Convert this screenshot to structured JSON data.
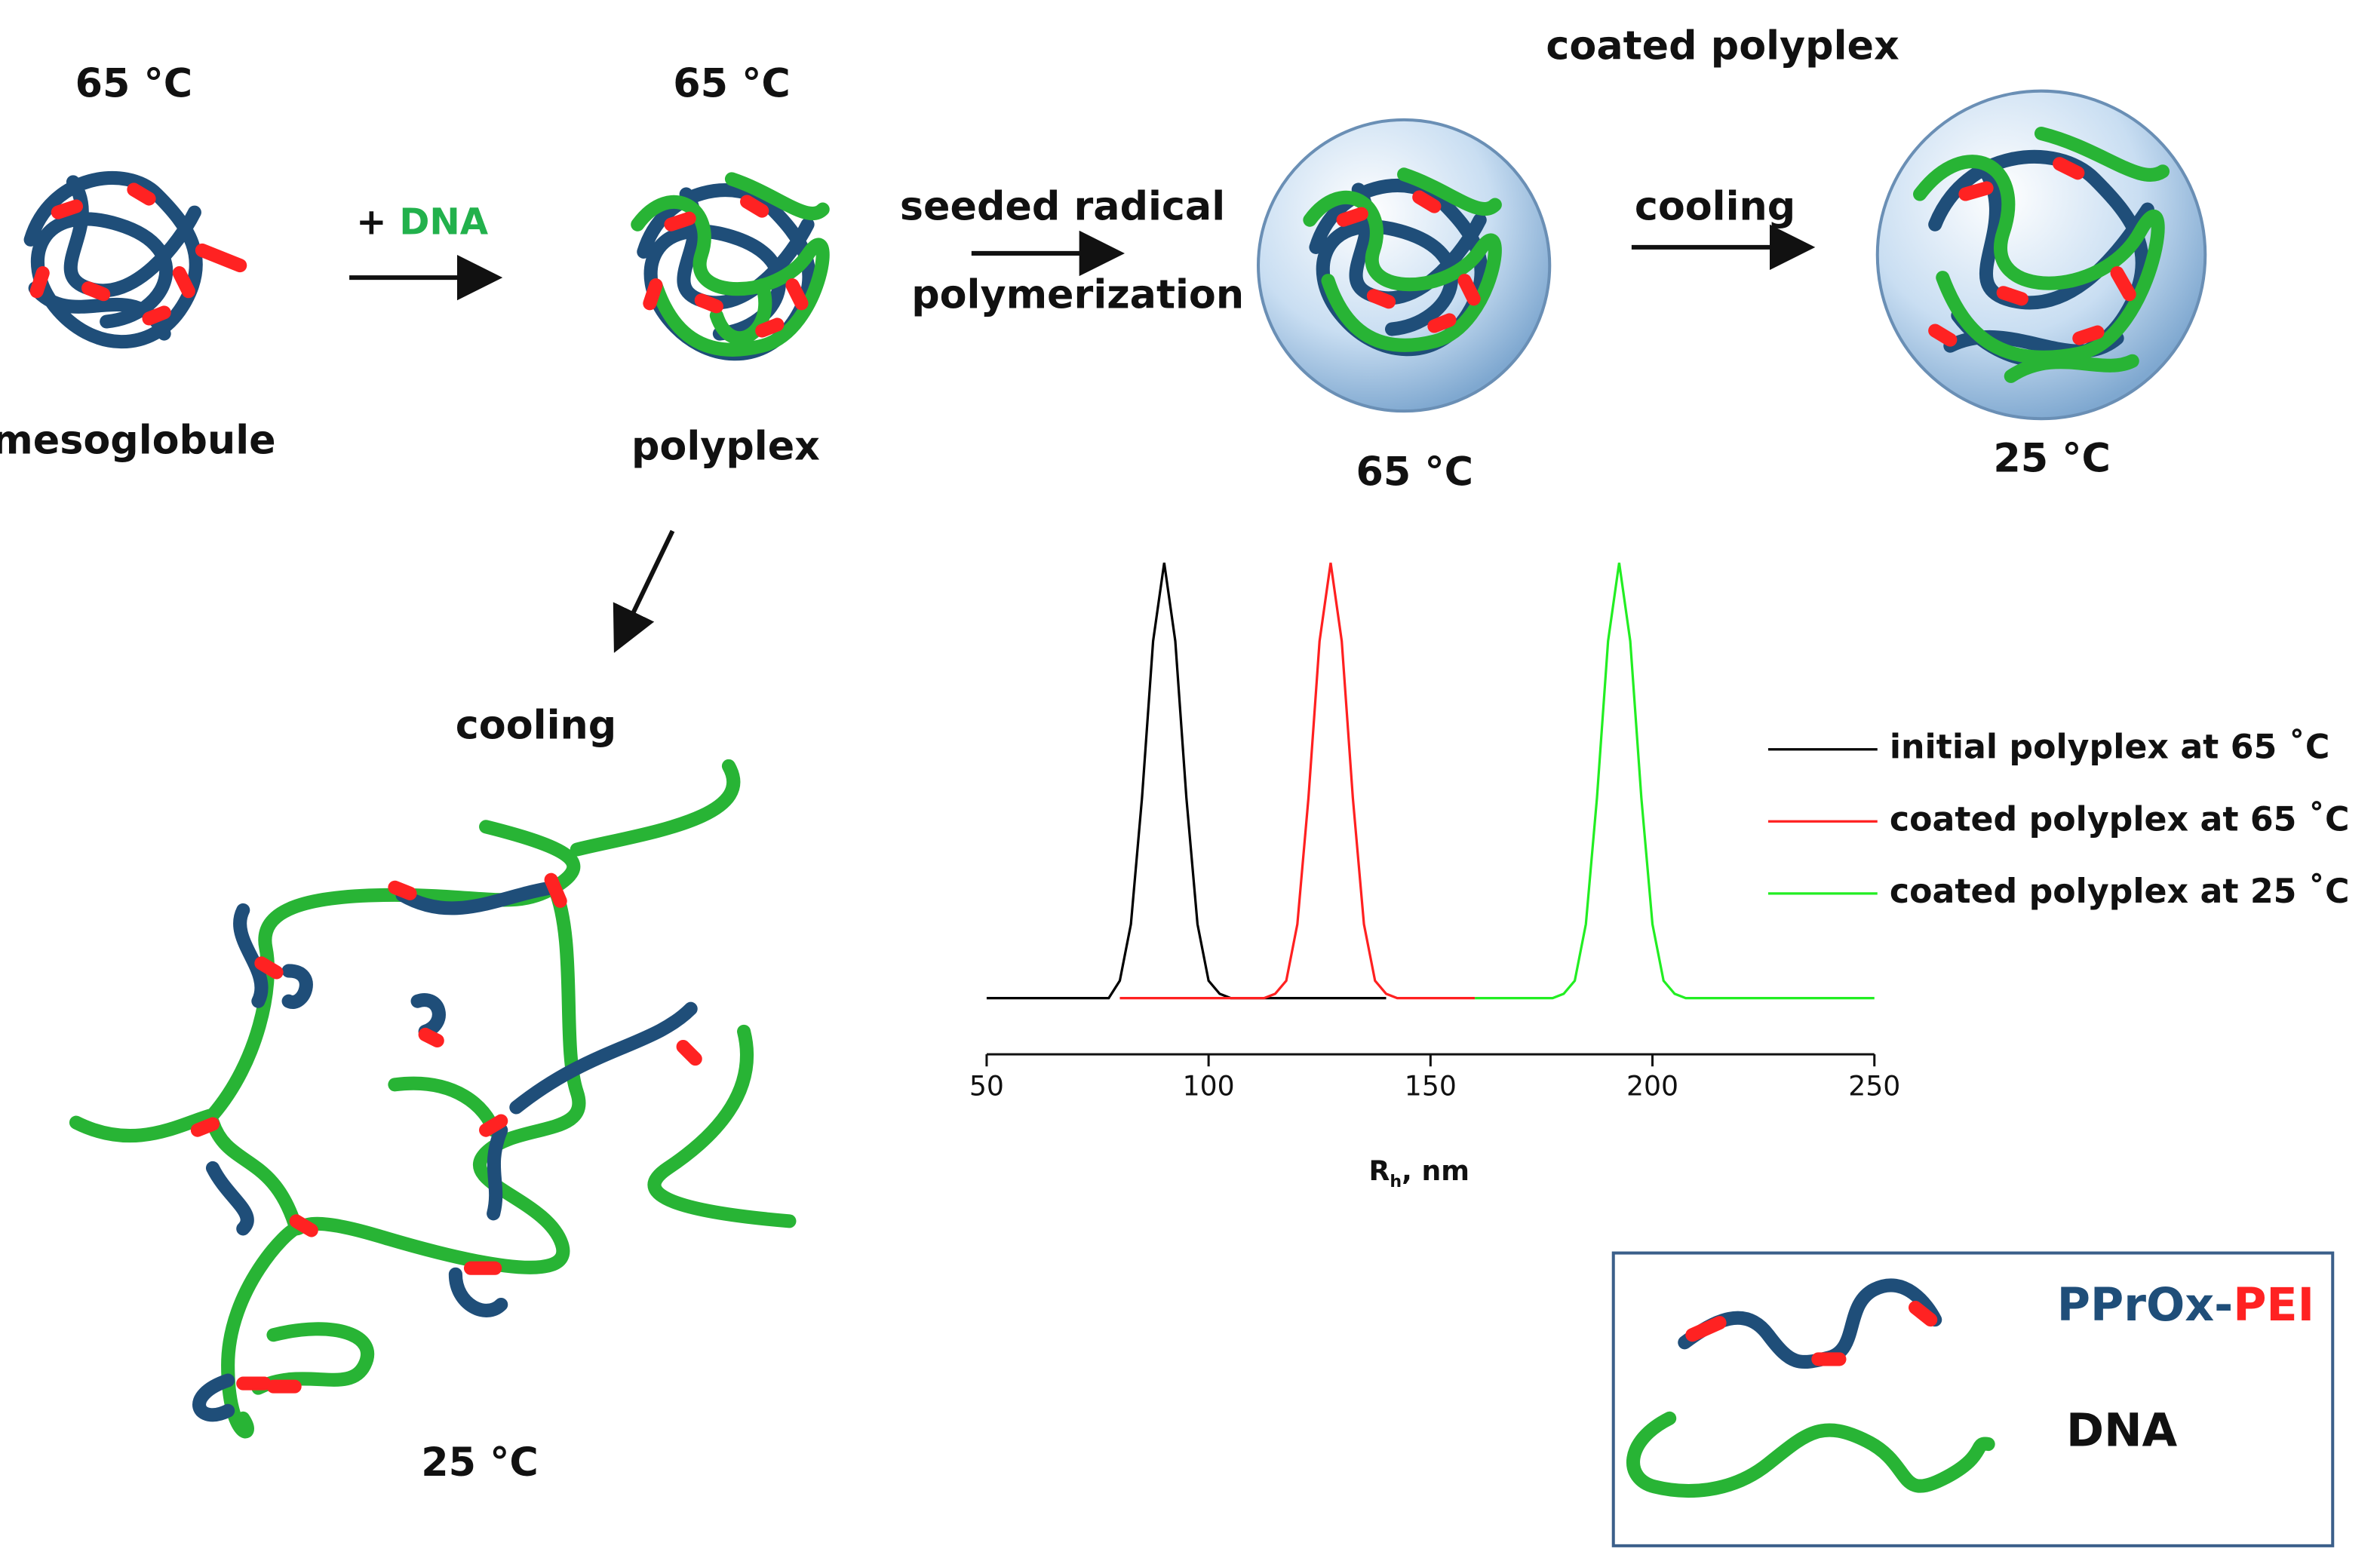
{
  "labels": {
    "mesoglobule_temp": "65 °C",
    "mesoglobule": "mesoglobule",
    "plus": "+",
    "dna": "DNA",
    "polyplex_temp": "65 °C",
    "polyplex": "polyplex",
    "seeded_1": "seeded radical",
    "seeded_2": "polymerization",
    "coated_title": "coated polyplex",
    "coated_temp": "65 °C",
    "cooling_top": "cooling",
    "cooled_temp": "25 °C",
    "cooling_bottom": "cooling",
    "network_temp": "25 °C"
  },
  "key": {
    "pprox": "PPrOx-",
    "pei": "PEI",
    "dna": "DNA"
  },
  "chart_data": {
    "type": "line",
    "x_label_symbol": "R",
    "x_label_subscript": "h",
    "x_label_unit": ", nm",
    "xlim": [
      50,
      250
    ],
    "xticks": [
      50,
      100,
      150,
      200,
      250
    ],
    "ylim": [
      0,
      1
    ],
    "x": [
      50,
      52.5,
      55,
      57.5,
      60,
      62.5,
      65,
      67.5,
      70,
      72.5,
      75,
      77.5,
      80,
      82.5,
      85,
      87.5,
      90,
      92.5,
      95,
      97.5,
      100,
      102.5,
      105,
      107.5,
      110,
      112.5,
      115,
      117.5,
      120,
      122.5,
      125,
      127.5,
      130,
      132.5,
      135,
      137.5,
      140,
      142.5,
      145,
      147.5,
      150,
      152.5,
      155,
      157.5,
      160,
      162.5,
      165,
      167.5,
      170,
      172.5,
      175,
      177.5,
      180,
      182.5,
      185,
      187.5,
      190,
      192.5,
      195,
      197.5,
      200,
      202.5,
      205,
      207.5,
      210,
      212.5,
      215,
      217.5,
      220,
      222.5,
      225,
      227.5,
      230,
      232.5,
      235,
      237.5,
      240,
      242.5,
      245,
      247.5,
      250
    ],
    "series": [
      {
        "name": "initial polyplex at 65 ˚C",
        "color": "#000000",
        "values": [
          0,
          0,
          0,
          0,
          0,
          0,
          0,
          0,
          0,
          0,
          0,
          0,
          0.04,
          0.17,
          0.46,
          0.82,
          1,
          0.82,
          0.46,
          0.17,
          0.04,
          0.01,
          0,
          0,
          0,
          0,
          0,
          0,
          0,
          0,
          0,
          0,
          0,
          0,
          0,
          0,
          0,
          null,
          null,
          null,
          null,
          null,
          null,
          null,
          null,
          null,
          null,
          null,
          null,
          null,
          null,
          null,
          null,
          null,
          null,
          null,
          null,
          null,
          null,
          null,
          null,
          null,
          null,
          null,
          null,
          null,
          null,
          null,
          null,
          null,
          null,
          null,
          null,
          null,
          null,
          null,
          null,
          null,
          null,
          null,
          null
        ]
      },
      {
        "name": "coated polyplex at 65 ˚C",
        "color": "#ff2020",
        "values": [
          null,
          null,
          null,
          null,
          null,
          null,
          null,
          null,
          null,
          null,
          null,
          null,
          0,
          0,
          0,
          0,
          0,
          0,
          0,
          0,
          0,
          0,
          0,
          0,
          0,
          0,
          0.01,
          0.04,
          0.17,
          0.46,
          0.82,
          1,
          0.82,
          0.46,
          0.17,
          0.04,
          0.01,
          0,
          0,
          0,
          0,
          0,
          0,
          0,
          0,
          null,
          null,
          null,
          null,
          null,
          null,
          null,
          null,
          null,
          null,
          null,
          null,
          null,
          null,
          null,
          null,
          null,
          null,
          null,
          null,
          null,
          null,
          null,
          null,
          null,
          null,
          null,
          null,
          null,
          null,
          null,
          null,
          null,
          null,
          null,
          null
        ]
      },
      {
        "name": "coated polyplex at 25 ˚C",
        "color": "#22ee22",
        "values": [
          null,
          null,
          null,
          null,
          null,
          null,
          null,
          null,
          null,
          null,
          null,
          null,
          null,
          null,
          null,
          null,
          null,
          null,
          null,
          null,
          null,
          null,
          null,
          null,
          null,
          null,
          null,
          null,
          null,
          null,
          null,
          null,
          null,
          null,
          null,
          null,
          null,
          null,
          null,
          null,
          null,
          null,
          null,
          null,
          0,
          0,
          0,
          0,
          0,
          0,
          0,
          0,
          0.01,
          0.04,
          0.17,
          0.46,
          0.82,
          1,
          0.82,
          0.46,
          0.17,
          0.04,
          0.01,
          0,
          0,
          0,
          0,
          0,
          0,
          0,
          0,
          0,
          0,
          0,
          0,
          0,
          0,
          0,
          0,
          0,
          0
        ]
      }
    ]
  }
}
